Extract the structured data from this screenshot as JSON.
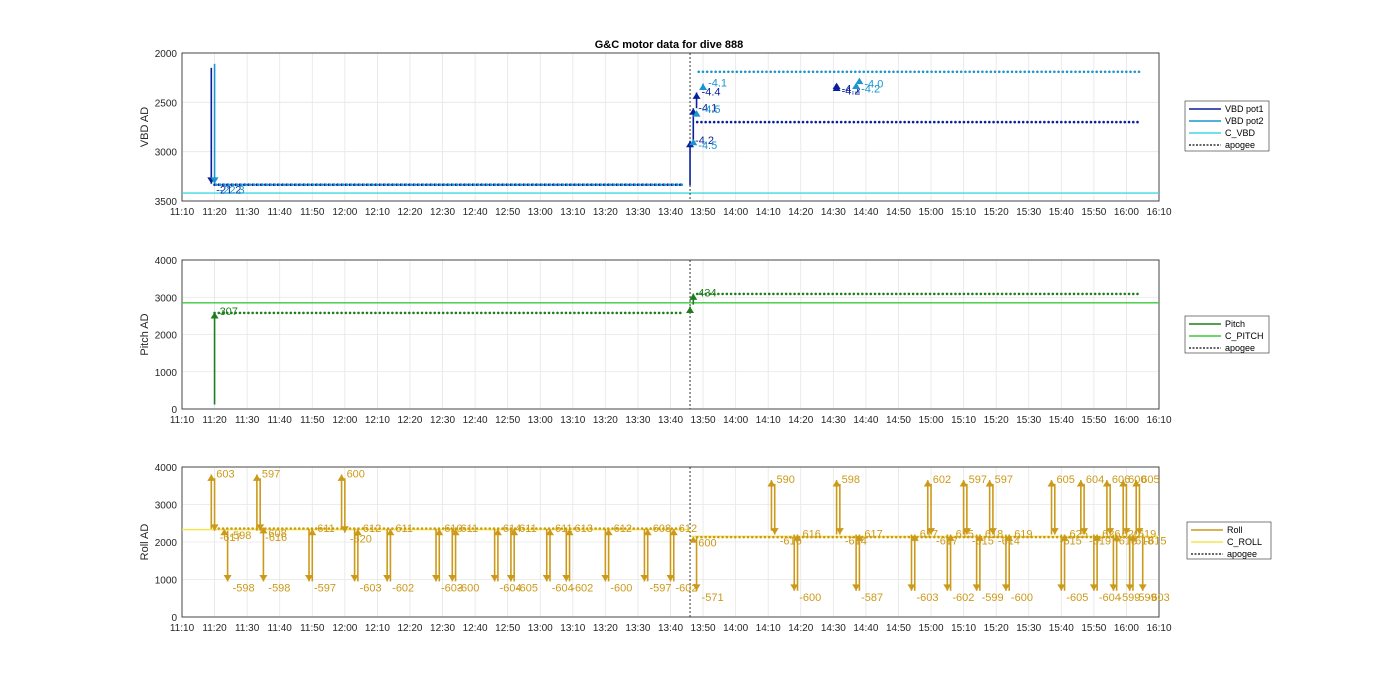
{
  "figure_title": "G&C motor data for dive 888",
  "chart_data": [
    {
      "type": "line",
      "ylabel": "VBD AD",
      "xlim": [
        "11:10",
        "16:10"
      ],
      "ylim": [
        2000,
        3500
      ],
      "y_reversed": true,
      "yticks": [
        2000,
        2500,
        3000,
        3500
      ],
      "xticks": [
        "11:10",
        "11:20",
        "11:30",
        "11:40",
        "11:50",
        "12:00",
        "12:10",
        "12:20",
        "12:30",
        "12:40",
        "12:50",
        "13:00",
        "13:10",
        "13:20",
        "13:30",
        "13:40",
        "13:50",
        "14:00",
        "14:10",
        "14:20",
        "14:30",
        "14:40",
        "14:50",
        "15:00",
        "15:10",
        "15:20",
        "15:30",
        "15:40",
        "15:50",
        "16:00",
        "16:10"
      ],
      "grid": true,
      "legend_position": "right",
      "legend": [
        {
          "label": "VBD pot1",
          "color": "#0a1f9c",
          "style": "solid"
        },
        {
          "label": "VBD pot2",
          "color": "#1a95cf",
          "style": "solid"
        },
        {
          "label": "C_VBD",
          "color": "#3fd9e0",
          "style": "solid"
        },
        {
          "label": "apogee",
          "color": "#333333",
          "style": "dotted"
        }
      ],
      "reference_lines": [
        {
          "name": "C_VBD",
          "y": 3420
        }
      ],
      "apogee_time": "13:46",
      "series": [
        {
          "name": "VBD pot1",
          "color": "#0a1f9c",
          "start": "11:20",
          "end": "16:04",
          "value": 3335,
          "after_apogee": 2700
        },
        {
          "name": "VBD pot2",
          "color": "#1a95cf",
          "start": "11:20",
          "end": "16:04",
          "value": 3335,
          "after_apogee": 2190
        }
      ],
      "moves": [
        {
          "t": "11:19",
          "from": 2150,
          "to": 3325,
          "label": "-21.2",
          "color": "#0a1f9c"
        },
        {
          "t": "11:20",
          "from": 2110,
          "to": 3325,
          "label": "-22.3",
          "color": "#1a95cf"
        },
        {
          "t": "13:46",
          "from": 3340,
          "to": 2890,
          "label": "-4.2",
          "color": "#0a1f9c"
        },
        {
          "t": "13:47",
          "from": 2890,
          "to": 2560,
          "label": "-4.1",
          "color": "#0a1f9c"
        },
        {
          "t": "13:48",
          "from": 2560,
          "to": 2400,
          "label": "-4.4",
          "color": "#0a1f9c"
        },
        {
          "t": "13:47",
          "from": 2850,
          "to": 2870,
          "label": "-4.5",
          "color": "#1a95cf"
        },
        {
          "t": "13:48",
          "from": 2600,
          "to": 2580,
          "label": "-4.5",
          "color": "#1a95cf"
        },
        {
          "t": "13:50",
          "from": 2350,
          "to": 2310,
          "label": "-4.1",
          "color": "#1a95cf"
        },
        {
          "t": "14:31",
          "from": 2300,
          "to": 2300,
          "label": "-4.1",
          "color": "#0a1f9c"
        },
        {
          "t": "14:31",
          "from": 2320,
          "to": 2320,
          "label": "-4.2",
          "color": "#0a1f9c"
        },
        {
          "t": "14:37",
          "from": 2300,
          "to": 2300,
          "label": "-4.2",
          "color": "#1a95cf"
        },
        {
          "t": "14:38",
          "from": 2250,
          "to": 2250,
          "label": "-4.0",
          "color": "#1a95cf"
        }
      ]
    },
    {
      "type": "line",
      "ylabel": "Pitch AD",
      "xlim": [
        "11:10",
        "16:10"
      ],
      "ylim": [
        0,
        4000
      ],
      "yticks": [
        0,
        1000,
        2000,
        3000,
        4000
      ],
      "xticks": [
        "11:10",
        "11:20",
        "11:30",
        "11:40",
        "11:50",
        "12:00",
        "12:10",
        "12:20",
        "12:30",
        "12:40",
        "12:50",
        "13:00",
        "13:10",
        "13:20",
        "13:30",
        "13:40",
        "13:50",
        "14:00",
        "14:10",
        "14:20",
        "14:30",
        "14:40",
        "14:50",
        "15:00",
        "15:10",
        "15:20",
        "15:30",
        "15:40",
        "15:50",
        "16:00",
        "16:10"
      ],
      "grid": true,
      "legend_position": "right",
      "legend": [
        {
          "label": "Pitch",
          "color": "#1e7d1e",
          "style": "solid"
        },
        {
          "label": "C_PITCH",
          "color": "#3cc93c",
          "style": "solid"
        },
        {
          "label": "apogee",
          "color": "#333333",
          "style": "dotted"
        }
      ],
      "reference_lines": [
        {
          "name": "C_PITCH",
          "y": 2850
        }
      ],
      "apogee_time": "13:46",
      "series": [
        {
          "name": "Pitch",
          "color": "#1e7d1e",
          "start": "11:20",
          "end": "16:04",
          "value": 2580,
          "after_apogee": 3090
        }
      ],
      "moves": [
        {
          "t": "11:20",
          "from": 120,
          "to": 2600,
          "label": "307",
          "color": "#1e7d1e"
        },
        {
          "t": "13:46",
          "from": 2600,
          "to": 2750,
          "label": "",
          "color": "#1e7d1e"
        },
        {
          "t": "13:47",
          "from": 2800,
          "to": 3100,
          "label": "434",
          "color": "#1e7d1e"
        }
      ]
    },
    {
      "type": "line",
      "ylabel": "Roll AD",
      "xlim": [
        "11:10",
        "16:10"
      ],
      "ylim": [
        0,
        4000
      ],
      "yticks": [
        0,
        1000,
        2000,
        3000,
        4000
      ],
      "xticks": [
        "11:10",
        "11:20",
        "11:30",
        "11:40",
        "11:50",
        "12:00",
        "12:10",
        "12:20",
        "12:30",
        "12:40",
        "12:50",
        "13:00",
        "13:10",
        "13:20",
        "13:30",
        "13:40",
        "13:50",
        "14:00",
        "14:10",
        "14:20",
        "14:30",
        "14:40",
        "14:50",
        "15:00",
        "15:10",
        "15:20",
        "15:30",
        "15:40",
        "15:50",
        "16:00",
        "16:10"
      ],
      "grid": true,
      "legend_position": "right",
      "legend": [
        {
          "label": "Roll",
          "color": "#cc9a1a",
          "style": "solid"
        },
        {
          "label": "C_ROLL",
          "color": "#f2e64d",
          "style": "solid"
        },
        {
          "label": "apogee",
          "color": "#333333",
          "style": "dotted"
        }
      ],
      "reference_lines": [
        {
          "name": "C_ROLL",
          "y": 2330,
          "end": "13:46",
          "y2": 2150
        }
      ],
      "apogee_time": "13:46",
      "series": [
        {
          "name": "Roll",
          "color": "#cc9a1a",
          "start": "11:20",
          "end": "16:04",
          "value": 2360,
          "after_apogee": 2130
        }
      ],
      "moves": [
        {
          "t": "11:19",
          "from": 2350,
          "to": 3800,
          "label": "603",
          "color": "#cc9a1a"
        },
        {
          "t": "11:20",
          "from": 3700,
          "to": 2300,
          "label": "-617",
          "color": "#cc9a1a"
        },
        {
          "t": "11:23",
          "from": 2350,
          "to": 2350,
          "label": "-598",
          "color": "#cc9a1a"
        },
        {
          "t": "11:24",
          "from": 2300,
          "to": 950,
          "label": "-598",
          "color": "#cc9a1a"
        },
        {
          "t": "11:33",
          "from": 2300,
          "to": 3800,
          "label": "597",
          "color": "#cc9a1a"
        },
        {
          "t": "11:34",
          "from": 3700,
          "to": 2300,
          "label": "-616",
          "color": "#cc9a1a"
        },
        {
          "t": "11:35",
          "from": 2400,
          "to": 2400,
          "label": "608",
          "color": "#cc9a1a"
        },
        {
          "t": "11:35",
          "from": 2300,
          "to": 950,
          "label": "-598",
          "color": "#cc9a1a"
        },
        {
          "t": "11:49",
          "from": 2350,
          "to": 950,
          "label": "-597",
          "color": "#cc9a1a"
        },
        {
          "t": "11:50",
          "from": 950,
          "to": 2350,
          "label": "611",
          "color": "#cc9a1a"
        },
        {
          "t": "11:59",
          "from": 2350,
          "to": 3800,
          "label": "600",
          "color": "#cc9a1a"
        },
        {
          "t": "12:00",
          "from": 3700,
          "to": 2250,
          "label": "-620",
          "color": "#cc9a1a"
        },
        {
          "t": "12:03",
          "from": 2350,
          "to": 950,
          "label": "-603",
          "color": "#cc9a1a"
        },
        {
          "t": "12:04",
          "from": 950,
          "to": 2350,
          "label": "612",
          "color": "#cc9a1a"
        },
        {
          "t": "12:13",
          "from": 2350,
          "to": 950,
          "label": "-602",
          "color": "#cc9a1a"
        },
        {
          "t": "12:14",
          "from": 950,
          "to": 2350,
          "label": "611",
          "color": "#cc9a1a"
        },
        {
          "t": "12:28",
          "from": 2350,
          "to": 950,
          "label": "-603",
          "color": "#cc9a1a"
        },
        {
          "t": "12:29",
          "from": 950,
          "to": 2350,
          "label": "610",
          "color": "#cc9a1a"
        },
        {
          "t": "12:33",
          "from": 2350,
          "to": 950,
          "label": "-600",
          "color": "#cc9a1a"
        },
        {
          "t": "12:34",
          "from": 950,
          "to": 2350,
          "label": "611",
          "color": "#cc9a1a"
        },
        {
          "t": "12:46",
          "from": 2350,
          "to": 950,
          "label": "-604",
          "color": "#cc9a1a"
        },
        {
          "t": "12:47",
          "from": 950,
          "to": 2350,
          "label": "614",
          "color": "#cc9a1a"
        },
        {
          "t": "12:51",
          "from": 2350,
          "to": 950,
          "label": "-605",
          "color": "#cc9a1a"
        },
        {
          "t": "12:52",
          "from": 950,
          "to": 2350,
          "label": "611",
          "color": "#cc9a1a"
        },
        {
          "t": "13:02",
          "from": 2350,
          "to": 950,
          "label": "-604",
          "color": "#cc9a1a"
        },
        {
          "t": "13:03",
          "from": 950,
          "to": 2350,
          "label": "611",
          "color": "#cc9a1a"
        },
        {
          "t": "13:08",
          "from": 2350,
          "to": 950,
          "label": "-602",
          "color": "#cc9a1a"
        },
        {
          "t": "13:09",
          "from": 950,
          "to": 2350,
          "label": "613",
          "color": "#cc9a1a"
        },
        {
          "t": "13:20",
          "from": 2350,
          "to": 950,
          "label": "-600",
          "color": "#cc9a1a"
        },
        {
          "t": "13:21",
          "from": 950,
          "to": 2350,
          "label": "612",
          "color": "#cc9a1a"
        },
        {
          "t": "13:32",
          "from": 2350,
          "to": 950,
          "label": "-597",
          "color": "#cc9a1a"
        },
        {
          "t": "13:33",
          "from": 950,
          "to": 2350,
          "label": "608",
          "color": "#cc9a1a"
        },
        {
          "t": "13:40",
          "from": 2350,
          "to": 950,
          "label": "-602",
          "color": "#cc9a1a"
        },
        {
          "t": "13:41",
          "from": 950,
          "to": 2350,
          "label": "612",
          "color": "#cc9a1a"
        },
        {
          "t": "13:47",
          "from": 2150,
          "to": 2150,
          "label": "600",
          "color": "#cc9a1a"
        },
        {
          "t": "13:48",
          "from": 2150,
          "to": 700,
          "label": "-571",
          "color": "#cc9a1a"
        },
        {
          "t": "14:11",
          "from": 2300,
          "to": 3650,
          "label": "590",
          "color": "#cc9a1a"
        },
        {
          "t": "14:12",
          "from": 3550,
          "to": 2200,
          "label": "-616",
          "color": "#cc9a1a"
        },
        {
          "t": "14:18",
          "from": 2200,
          "to": 700,
          "label": "-600",
          "color": "#cc9a1a"
        },
        {
          "t": "14:19",
          "from": 700,
          "to": 2200,
          "label": "616",
          "color": "#cc9a1a"
        },
        {
          "t": "14:31",
          "from": 2200,
          "to": 3650,
          "label": "598",
          "color": "#cc9a1a"
        },
        {
          "t": "14:32",
          "from": 3550,
          "to": 2200,
          "label": "-614",
          "color": "#cc9a1a"
        },
        {
          "t": "14:37",
          "from": 2200,
          "to": 700,
          "label": "-587",
          "color": "#cc9a1a"
        },
        {
          "t": "14:38",
          "from": 700,
          "to": 2200,
          "label": "617",
          "color": "#cc9a1a"
        },
        {
          "t": "14:54",
          "from": 2200,
          "to": 700,
          "label": "-603",
          "color": "#cc9a1a"
        },
        {
          "t": "14:55",
          "from": 700,
          "to": 2200,
          "label": "617",
          "color": "#cc9a1a"
        },
        {
          "t": "14:59",
          "from": 2200,
          "to": 3650,
          "label": "602",
          "color": "#cc9a1a"
        },
        {
          "t": "15:00",
          "from": 3550,
          "to": 2200,
          "label": "-617",
          "color": "#cc9a1a"
        },
        {
          "t": "15:05",
          "from": 2200,
          "to": 700,
          "label": "-602",
          "color": "#cc9a1a"
        },
        {
          "t": "15:06",
          "from": 700,
          "to": 2200,
          "label": "615",
          "color": "#cc9a1a"
        },
        {
          "t": "15:10",
          "from": 2200,
          "to": 3650,
          "label": "597",
          "color": "#cc9a1a"
        },
        {
          "t": "15:11",
          "from": 3550,
          "to": 2200,
          "label": "-615",
          "color": "#cc9a1a"
        },
        {
          "t": "15:14",
          "from": 2200,
          "to": 700,
          "label": "-599",
          "color": "#cc9a1a"
        },
        {
          "t": "15:15",
          "from": 700,
          "to": 2200,
          "label": "618",
          "color": "#cc9a1a"
        },
        {
          "t": "15:18",
          "from": 2200,
          "to": 3650,
          "label": "597",
          "color": "#cc9a1a"
        },
        {
          "t": "15:19",
          "from": 3550,
          "to": 2200,
          "label": "-614",
          "color": "#cc9a1a"
        },
        {
          "t": "15:23",
          "from": 2200,
          "to": 700,
          "label": "-600",
          "color": "#cc9a1a"
        },
        {
          "t": "15:24",
          "from": 700,
          "to": 2200,
          "label": "619",
          "color": "#cc9a1a"
        },
        {
          "t": "15:37",
          "from": 2200,
          "to": 3650,
          "label": "605",
          "color": "#cc9a1a"
        },
        {
          "t": "15:38",
          "from": 3550,
          "to": 2200,
          "label": "-615",
          "color": "#cc9a1a"
        },
        {
          "t": "15:40",
          "from": 2200,
          "to": 700,
          "label": "-605",
          "color": "#cc9a1a"
        },
        {
          "t": "15:41",
          "from": 700,
          "to": 2200,
          "label": "625",
          "color": "#cc9a1a"
        },
        {
          "t": "15:46",
          "from": 2200,
          "to": 3650,
          "label": "604",
          "color": "#cc9a1a"
        },
        {
          "t": "15:47",
          "from": 3550,
          "to": 2200,
          "label": "-619",
          "color": "#cc9a1a"
        },
        {
          "t": "15:50",
          "from": 2200,
          "to": 700,
          "label": "-604",
          "color": "#cc9a1a"
        },
        {
          "t": "15:51",
          "from": 700,
          "to": 2200,
          "label": "626",
          "color": "#cc9a1a"
        },
        {
          "t": "15:54",
          "from": 2200,
          "to": 3650,
          "label": "606",
          "color": "#cc9a1a"
        },
        {
          "t": "15:55",
          "from": 3550,
          "to": 2200,
          "label": "-618",
          "color": "#cc9a1a"
        },
        {
          "t": "15:56",
          "from": 2200,
          "to": 700,
          "label": "-599",
          "color": "#cc9a1a"
        },
        {
          "t": "15:57",
          "from": 700,
          "to": 2200,
          "label": "620",
          "color": "#cc9a1a"
        },
        {
          "t": "15:59",
          "from": 2200,
          "to": 3650,
          "label": "600",
          "color": "#cc9a1a"
        },
        {
          "t": "16:00",
          "from": 3550,
          "to": 2200,
          "label": "-618",
          "color": "#cc9a1a"
        },
        {
          "t": "16:01",
          "from": 2200,
          "to": 700,
          "label": "-599",
          "color": "#cc9a1a"
        },
        {
          "t": "16:02",
          "from": 700,
          "to": 2200,
          "label": "619",
          "color": "#cc9a1a"
        },
        {
          "t": "16:03",
          "from": 2200,
          "to": 3650,
          "label": "605",
          "color": "#cc9a1a"
        },
        {
          "t": "16:04",
          "from": 3550,
          "to": 2200,
          "label": "-615",
          "color": "#cc9a1a"
        },
        {
          "t": "16:05",
          "from": 2200,
          "to": 700,
          "label": "-603",
          "color": "#cc9a1a"
        }
      ]
    }
  ]
}
